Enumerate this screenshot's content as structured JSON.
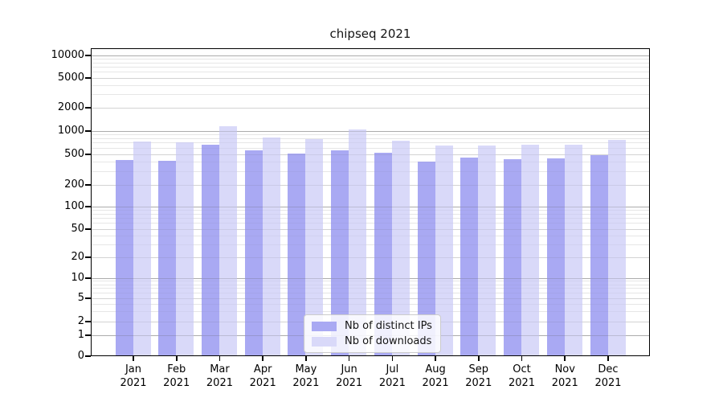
{
  "title": "chipseq 2021",
  "colors": {
    "ips_bar": "#a9a9f3",
    "downloads_bar": "#d9d9f9",
    "grid_major": "#c6c6c6",
    "grid_mid": "#e2e2e2",
    "grid_minor": "#efefef",
    "axis": "#000000",
    "legend_border": "#cccccc"
  },
  "y_axis": {
    "tick_labels": [
      "0",
      "1",
      "2",
      "5",
      "10",
      "20",
      "50",
      "100",
      "200",
      "500",
      "1000",
      "2000",
      "5000",
      "10000"
    ]
  },
  "x_axis": {
    "months": [
      "Jan",
      "Feb",
      "Mar",
      "Apr",
      "May",
      "Jun",
      "Jul",
      "Aug",
      "Sep",
      "Oct",
      "Nov",
      "Dec"
    ],
    "year": "2021"
  },
  "chart_data": {
    "type": "bar",
    "title": "chipseq 2021",
    "categories": [
      "Jan 2021",
      "Feb 2021",
      "Mar 2021",
      "Apr 2021",
      "May 2021",
      "Jun 2021",
      "Jul 2021",
      "Aug 2021",
      "Sep 2021",
      "Oct 2021",
      "Nov 2021",
      "Dec 2021"
    ],
    "series": [
      {
        "name": "Nb of distinct IPs",
        "color": "#a9a9f3",
        "values": [
          415,
          405,
          645,
          555,
          505,
          555,
          515,
          395,
          445,
          425,
          435,
          480
        ]
      },
      {
        "name": "Nb of downloads",
        "color": "#d9d9f9",
        "values": [
          710,
          705,
          1130,
          815,
          765,
          1015,
          730,
          640,
          630,
          645,
          645,
          745
        ]
      }
    ],
    "y_scale": "log-like (ticks 0,1,2,5,10,... with 0 on the baseline)",
    "y_ticks": [
      0,
      1,
      2,
      5,
      10,
      20,
      50,
      100,
      200,
      500,
      1000,
      2000,
      5000,
      10000
    ],
    "ylim": [
      0,
      12500
    ],
    "grid": true,
    "legend_position": "lower center"
  }
}
